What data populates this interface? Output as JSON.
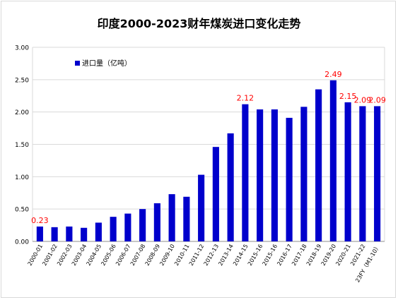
{
  "chart_data": {
    "type": "bar",
    "title": "印度2000-2023财年煤炭进口变化走势",
    "legend": {
      "label": "进口量（亿吨）",
      "placement": "top-left"
    },
    "ylim": [
      0,
      3
    ],
    "yticks": [
      "0.00",
      "0.50",
      "1.00",
      "1.50",
      "2.00",
      "2.50",
      "3.00"
    ],
    "grid": true,
    "colors": {
      "bar": "#0000CC",
      "annotation": "#FF0000"
    },
    "categories": [
      "2000-01",
      "2001-02",
      "2002-03",
      "2003-04",
      "2004-05",
      "2005-06",
      "2006-07",
      "2007-08",
      "2008-09",
      "2009-10",
      "2010-11",
      "2011-12",
      "2012-13",
      "2013-14",
      "2014-15",
      "2015-16",
      "2015-16",
      "2016-17",
      "2017-18",
      "2018-19",
      "2019-20",
      "2020-21",
      "2021-22",
      "23FY（M1-10）"
    ],
    "series": [
      {
        "name": "进口量（亿吨）",
        "values": [
          0.23,
          0.22,
          0.23,
          0.21,
          0.29,
          0.38,
          0.43,
          0.5,
          0.59,
          0.73,
          0.69,
          1.03,
          1.46,
          1.67,
          2.12,
          2.04,
          2.04,
          1.91,
          2.08,
          2.35,
          2.49,
          2.15,
          2.09,
          2.09
        ]
      }
    ],
    "annotations": [
      {
        "index": 0,
        "text": "0.23"
      },
      {
        "index": 14,
        "text": "2.12"
      },
      {
        "index": 20,
        "text": "2.49"
      },
      {
        "index": 21,
        "text": "2.15"
      },
      {
        "index": 22,
        "text": "2.09"
      },
      {
        "index": 23,
        "text": "2.09"
      }
    ]
  }
}
